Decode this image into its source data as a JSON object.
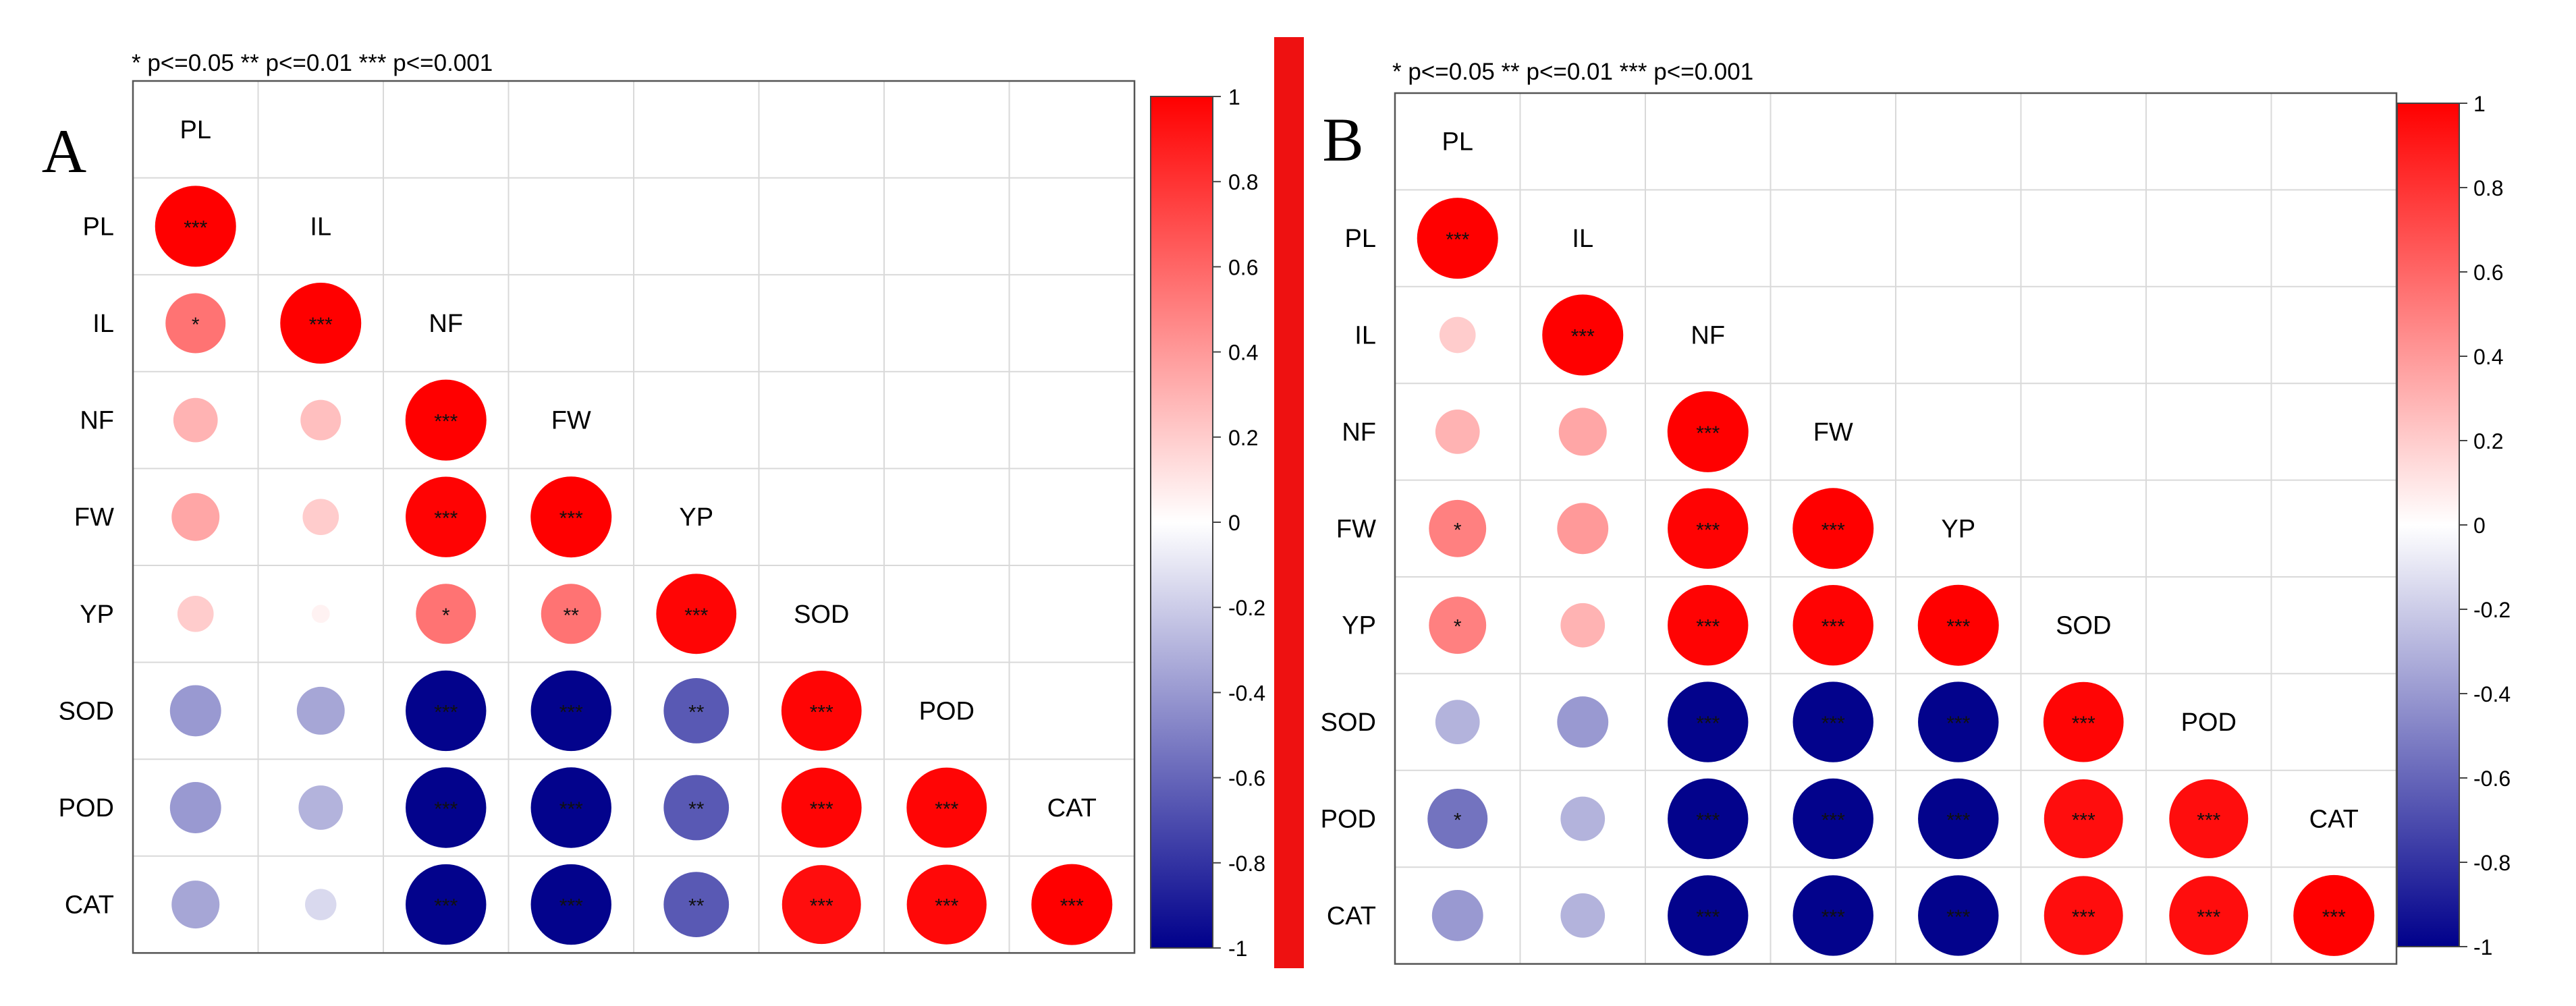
{
  "figure": {
    "separator_color": "#ee1111",
    "scale_colors": {
      "negative": "#00008b",
      "zero": "#ffffff",
      "positive": "#ff0000"
    }
  },
  "chart_data": [
    {
      "type": "heatmap",
      "panel_label": "A",
      "legend_text": "* p<=0.05  ** p<=0.01  *** p<=0.001",
      "variables": [
        "PL",
        "IL",
        "NF",
        "FW",
        "YP",
        "SOD",
        "POD",
        "CAT"
      ],
      "colorbar": {
        "min": -1,
        "max": 1,
        "ticks": [
          "1",
          "0.8",
          "0.6",
          "0.4",
          "0.2",
          "0",
          "-0.2",
          "-0.4",
          "-0.6",
          "-0.8",
          "-1"
        ]
      },
      "matrix": [
        [
          1.0,
          null,
          null,
          null,
          null,
          null,
          null,
          null
        ],
        [
          0.55,
          1.0,
          null,
          null,
          null,
          null,
          null,
          null
        ],
        [
          0.3,
          0.25,
          1.0,
          null,
          null,
          null,
          null,
          null
        ],
        [
          0.35,
          0.2,
          0.99,
          1.0,
          null,
          null,
          null,
          null
        ],
        [
          0.2,
          0.05,
          0.55,
          0.55,
          0.98,
          null,
          null,
          null
        ],
        [
          -0.4,
          -0.35,
          -0.99,
          -0.99,
          -0.65,
          0.98,
          null,
          null
        ],
        [
          -0.4,
          -0.3,
          -0.99,
          -0.99,
          -0.65,
          0.98,
          0.98,
          null
        ],
        [
          -0.35,
          -0.15,
          -0.99,
          -0.99,
          -0.65,
          0.95,
          0.97,
          1.0
        ]
      ],
      "significance": [
        [
          "***",
          "",
          "",
          "",
          "",
          "",
          "",
          ""
        ],
        [
          "*",
          "***",
          "",
          "",
          "",
          "",
          "",
          ""
        ],
        [
          "",
          "",
          "***",
          "",
          "",
          "",
          "",
          ""
        ],
        [
          "",
          "",
          "***",
          "***",
          "",
          "",
          "",
          ""
        ],
        [
          "",
          "",
          "*",
          "**",
          "***",
          "",
          "",
          ""
        ],
        [
          "",
          "",
          "***",
          "***",
          "**",
          "***",
          "",
          ""
        ],
        [
          "",
          "",
          "***",
          "***",
          "**",
          "***",
          "***",
          ""
        ],
        [
          "",
          "",
          "***",
          "***",
          "**",
          "***",
          "***",
          "***"
        ]
      ]
    },
    {
      "type": "heatmap",
      "panel_label": "B",
      "legend_text": "* p<=0.05  ** p<=0.01  *** p<=0.001",
      "variables": [
        "PL",
        "IL",
        "NF",
        "FW",
        "YP",
        "SOD",
        "POD",
        "CAT"
      ],
      "colorbar": {
        "min": -1,
        "max": 1,
        "ticks": [
          "1",
          "0.8",
          "0.6",
          "0.4",
          "0.2",
          "0",
          "-0.2",
          "-0.4",
          "-0.6",
          "-0.8",
          "-1"
        ]
      },
      "matrix": [
        [
          1.0,
          null,
          null,
          null,
          null,
          null,
          null,
          null
        ],
        [
          0.2,
          1.0,
          null,
          null,
          null,
          null,
          null,
          null
        ],
        [
          0.3,
          0.35,
          1.0,
          null,
          null,
          null,
          null,
          null
        ],
        [
          0.5,
          0.4,
          0.99,
          1.0,
          null,
          null,
          null,
          null
        ],
        [
          0.5,
          0.3,
          0.99,
          0.99,
          1.0,
          null,
          null,
          null
        ],
        [
          -0.3,
          -0.4,
          -0.99,
          -0.99,
          -0.99,
          0.98,
          null,
          null
        ],
        [
          -0.55,
          -0.3,
          -0.99,
          -0.99,
          -0.99,
          0.95,
          0.95,
          null
        ],
        [
          -0.4,
          -0.3,
          -0.99,
          -0.99,
          -0.99,
          0.95,
          0.95,
          1.0
        ]
      ],
      "significance": [
        [
          "***",
          "",
          "",
          "",
          "",
          "",
          "",
          ""
        ],
        [
          "",
          "***",
          "",
          "",
          "",
          "",
          "",
          ""
        ],
        [
          "",
          "",
          "***",
          "",
          "",
          "",
          "",
          ""
        ],
        [
          "*",
          "",
          "***",
          "***",
          "",
          "",
          "",
          ""
        ],
        [
          "*",
          "",
          "***",
          "***",
          "***",
          "",
          "",
          ""
        ],
        [
          "",
          "",
          "***",
          "***",
          "***",
          "***",
          "",
          ""
        ],
        [
          "*",
          "",
          "***",
          "***",
          "***",
          "***",
          "***",
          ""
        ],
        [
          "",
          "",
          "***",
          "***",
          "***",
          "***",
          "***",
          "***"
        ]
      ]
    }
  ]
}
